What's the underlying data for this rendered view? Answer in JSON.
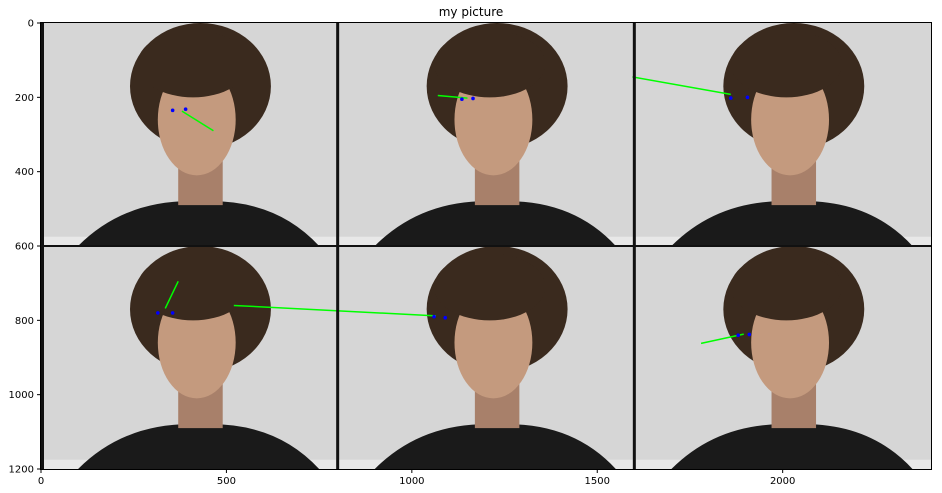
{
  "figure": {
    "title": "my picture"
  },
  "axes": {
    "x_ticks": [
      0,
      500,
      1000,
      1500,
      2000
    ],
    "y_ticks": [
      0,
      200,
      400,
      600,
      800,
      1000,
      1200
    ],
    "xlim": [
      0,
      2400
    ],
    "ylim": [
      0,
      1200
    ]
  },
  "image_grid": {
    "rows": 2,
    "cols": 3,
    "tile_width": 800,
    "tile_height": 600,
    "background_color": "#d6d6d6",
    "hair_color": "#3a2a1e",
    "skin_color": "#c49a7e",
    "shirt_color": "#1a1a1a",
    "gaze_line_color": "#00ff00",
    "pupil_color": "#0000ff",
    "tiles": [
      {
        "col": 0,
        "row": 0,
        "face": "turned-left-down",
        "eyes": [
          [
            355,
            235
          ],
          [
            390,
            232
          ]
        ],
        "gaze": [
          [
            380,
            237
          ],
          [
            465,
            290
          ]
        ]
      },
      {
        "col": 1,
        "row": 0,
        "face": "turned-left",
        "eyes": [
          [
            1135,
            205
          ],
          [
            1165,
            203
          ]
        ],
        "gaze": [
          [
            1150,
            202
          ],
          [
            1070,
            195
          ]
        ]
      },
      {
        "col": 2,
        "row": 0,
        "face": "turned-right",
        "eyes": [
          [
            1860,
            202
          ],
          [
            1905,
            200
          ]
        ],
        "gaze": [
          [
            1860,
            192
          ],
          [
            1595,
            145
          ]
        ]
      },
      {
        "col": 0,
        "row": 1,
        "face": "looking-up",
        "eyes": [
          [
            315,
            780
          ],
          [
            355,
            780
          ]
        ],
        "gaze": [
          [
            335,
            768
          ],
          [
            370,
            695
          ]
        ]
      },
      {
        "col": 1,
        "row": 1,
        "face": "turned-right",
        "eyes": [
          [
            1060,
            790
          ],
          [
            1090,
            793
          ]
        ],
        "gaze": [
          [
            1065,
            788
          ],
          [
            520,
            760
          ]
        ]
      },
      {
        "col": 2,
        "row": 1,
        "face": "turned-left",
        "eyes": [
          [
            1880,
            840
          ],
          [
            1910,
            838
          ]
        ],
        "gaze": [
          [
            1895,
            837
          ],
          [
            1780,
            862
          ]
        ]
      }
    ]
  }
}
